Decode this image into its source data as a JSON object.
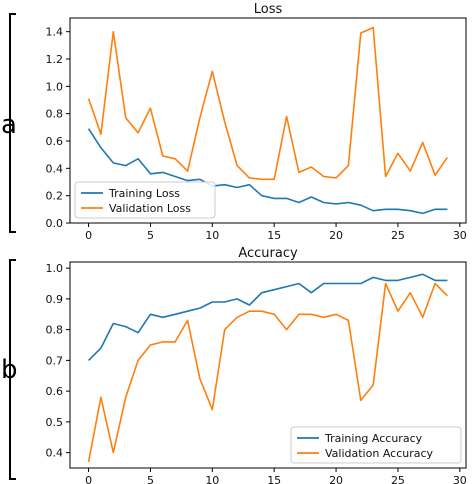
{
  "chart_data": [
    {
      "panel_label": "a",
      "type": "line",
      "title": "Loss",
      "xlabel": "",
      "ylabel": "",
      "xlim": [
        -1.5,
        30.5
      ],
      "ylim": [
        0.0,
        1.5
      ],
      "x_ticks": [
        0,
        5,
        10,
        15,
        20,
        25,
        30
      ],
      "y_ticks": [
        0.0,
        0.2,
        0.4,
        0.6,
        0.8,
        1.0,
        1.2,
        1.4
      ],
      "y_tick_labels": [
        "0.0",
        "0.2",
        "0.4",
        "0.6",
        "0.8",
        "1.0",
        "1.2",
        "1.4"
      ],
      "legend_position": "lower-left",
      "x": [
        0,
        1,
        2,
        3,
        4,
        5,
        6,
        7,
        8,
        9,
        10,
        11,
        12,
        13,
        14,
        15,
        16,
        17,
        18,
        19,
        20,
        21,
        22,
        23,
        24,
        25,
        26,
        27,
        28,
        29
      ],
      "series": [
        {
          "name": "Training Loss",
          "color": "#1f77b4",
          "values": [
            0.69,
            0.55,
            0.44,
            0.42,
            0.47,
            0.36,
            0.37,
            0.34,
            0.31,
            0.32,
            0.27,
            0.28,
            0.26,
            0.28,
            0.2,
            0.18,
            0.18,
            0.15,
            0.19,
            0.15,
            0.14,
            0.15,
            0.13,
            0.09,
            0.1,
            0.1,
            0.09,
            0.07,
            0.1,
            0.1
          ]
        },
        {
          "name": "Validation Loss",
          "color": "#ff7f0e",
          "values": [
            0.91,
            0.65,
            1.4,
            0.77,
            0.66,
            0.84,
            0.49,
            0.47,
            0.38,
            0.77,
            1.11,
            0.74,
            0.42,
            0.33,
            0.32,
            0.32,
            0.78,
            0.37,
            0.41,
            0.34,
            0.33,
            0.42,
            1.39,
            1.43,
            0.34,
            0.51,
            0.38,
            0.59,
            0.35,
            0.48
          ]
        }
      ]
    },
    {
      "panel_label": "b",
      "type": "line",
      "title": "Accuracy",
      "xlabel": "",
      "ylabel": "",
      "xlim": [
        -1.5,
        30.5
      ],
      "ylim": [
        0.35,
        1.02
      ],
      "x_ticks": [
        0,
        5,
        10,
        15,
        20,
        25,
        30
      ],
      "y_ticks": [
        0.4,
        0.5,
        0.6,
        0.7,
        0.8,
        0.9,
        1.0
      ],
      "y_tick_labels": [
        "0.4",
        "0.5",
        "0.6",
        "0.7",
        "0.8",
        "0.9",
        "1.0"
      ],
      "legend_position": "lower-right",
      "x": [
        0,
        1,
        2,
        3,
        4,
        5,
        6,
        7,
        8,
        9,
        10,
        11,
        12,
        13,
        14,
        15,
        16,
        17,
        18,
        19,
        20,
        21,
        22,
        23,
        24,
        25,
        26,
        27,
        28,
        29
      ],
      "series": [
        {
          "name": "Training Accuracy",
          "color": "#1f77b4",
          "values": [
            0.7,
            0.74,
            0.82,
            0.81,
            0.79,
            0.85,
            0.84,
            0.85,
            0.86,
            0.87,
            0.89,
            0.89,
            0.9,
            0.88,
            0.92,
            0.93,
            0.94,
            0.95,
            0.92,
            0.95,
            0.95,
            0.95,
            0.95,
            0.97,
            0.96,
            0.96,
            0.97,
            0.98,
            0.96,
            0.96
          ]
        },
        {
          "name": "Validation Accuracy",
          "color": "#ff7f0e",
          "values": [
            0.37,
            0.58,
            0.4,
            0.58,
            0.7,
            0.75,
            0.76,
            0.76,
            0.83,
            0.64,
            0.54,
            0.8,
            0.84,
            0.86,
            0.86,
            0.85,
            0.8,
            0.85,
            0.85,
            0.84,
            0.85,
            0.83,
            0.57,
            0.62,
            0.95,
            0.86,
            0.92,
            0.84,
            0.95,
            0.91
          ]
        }
      ]
    }
  ]
}
